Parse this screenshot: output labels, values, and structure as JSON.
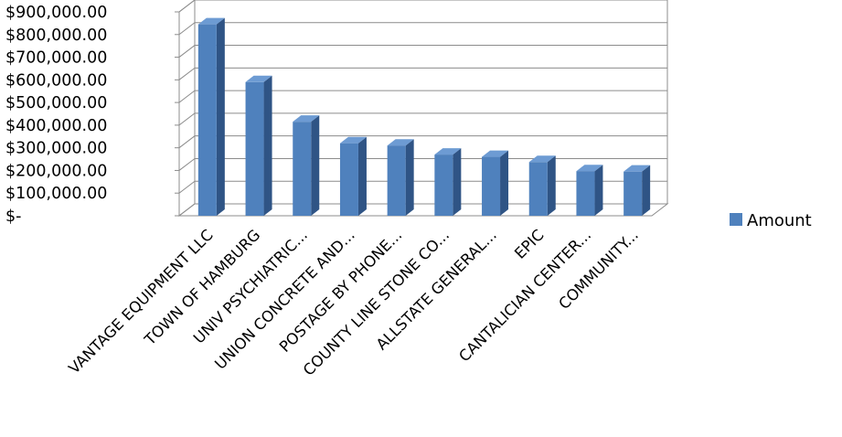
{
  "chart_data": {
    "type": "bar",
    "categories": [
      "VANTAGE EQUIPMENT LLC",
      "TOWN OF HAMBURG",
      "UNIV PSYCHIATRIC...",
      "UNION CONCRETE AND...",
      "POSTAGE BY PHONE...",
      "COUNTY LINE STONE CO...",
      "ALLSTATE GENERAL...",
      "EPIC",
      "CANTALICIAN CENTER...",
      "COMMUNITY..."
    ],
    "series": [
      {
        "name": "Amount",
        "values": [
          845000,
          590000,
          415000,
          320000,
          310000,
          270000,
          260000,
          237000,
          197000,
          195000
        ],
        "color": "#4F81BD"
      }
    ],
    "ylim": [
      0,
      900000
    ],
    "yticks": [
      0,
      100000,
      200000,
      300000,
      400000,
      500000,
      600000,
      700000,
      800000,
      900000
    ],
    "ytick_labels": [
      "$-",
      "$100,000.00",
      "$200,000.00",
      "$300,000.00",
      "$400,000.00",
      "$500,000.00",
      "$600,000.00",
      "$700,000.00",
      "$800,000.00",
      "$900,000.00"
    ],
    "grid": true,
    "style": "3d-column",
    "legend_position": "right",
    "title": "",
    "xlabel": "",
    "ylabel": ""
  }
}
